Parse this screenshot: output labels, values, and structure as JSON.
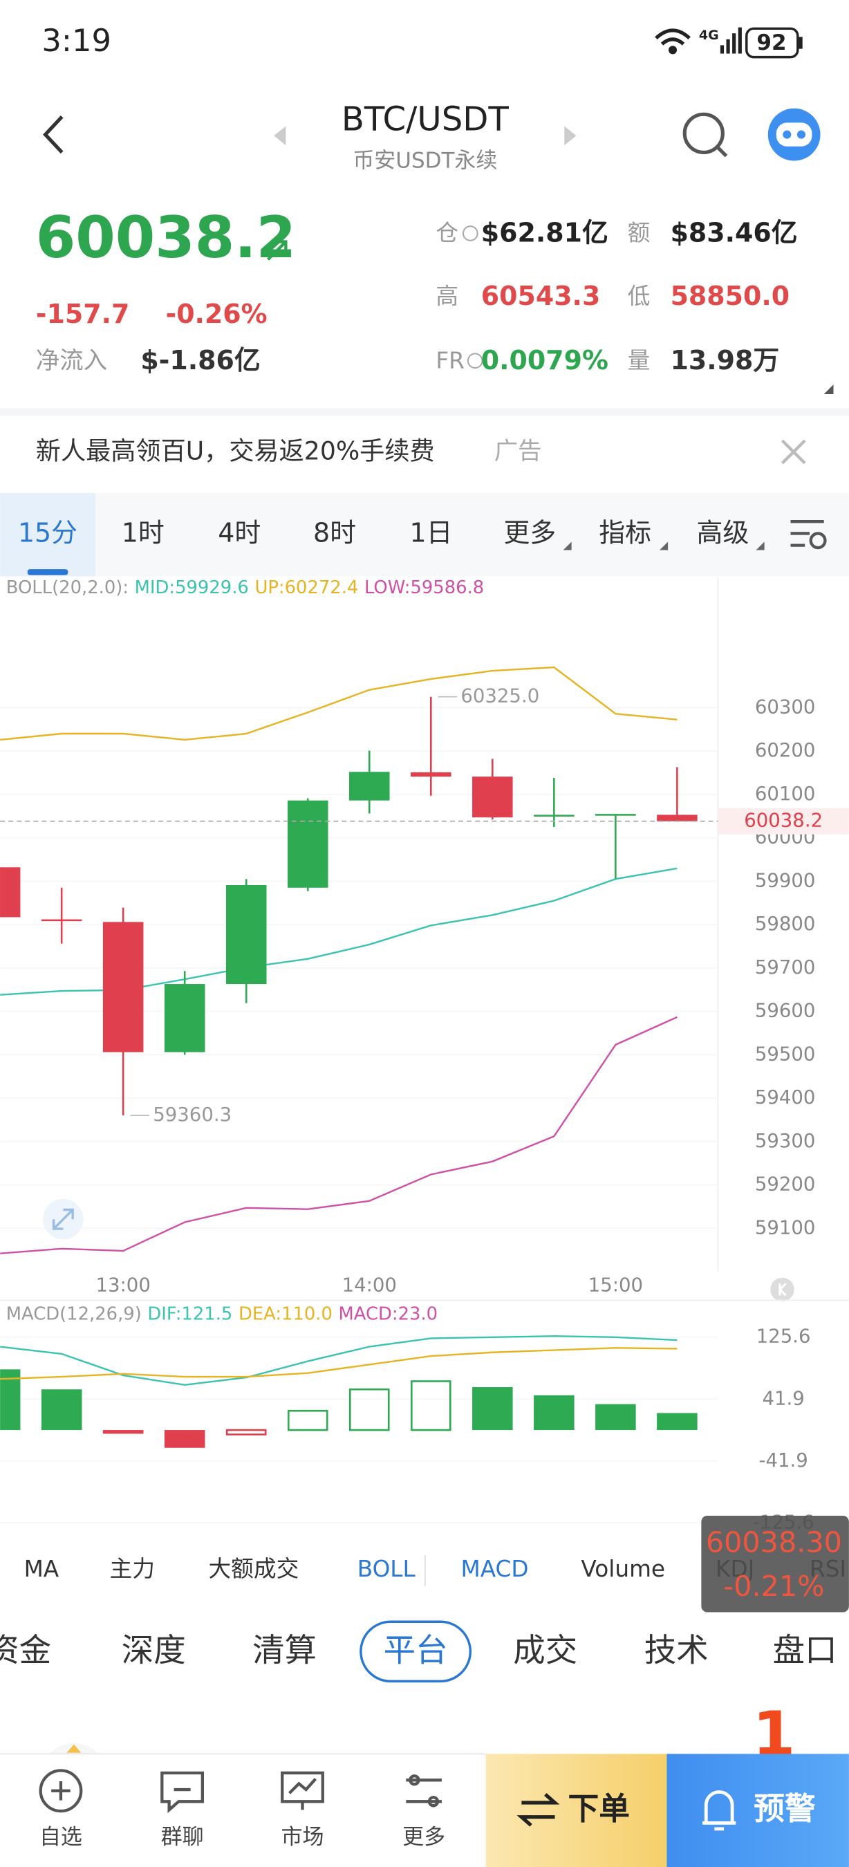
{
  "status_bar": {
    "time": "3:19",
    "network": "4G",
    "battery": "92"
  },
  "header": {
    "title": "BTC/USDT",
    "subtitle": "币安USDT永续"
  },
  "ticker": {
    "price": "60038.2",
    "change": "-157.7",
    "change_pct": "-0.26%",
    "net_inflow_label": "净流入",
    "net_inflow": "$-1.86亿",
    "stats": [
      {
        "label": "仓",
        "value": "$62.81亿"
      },
      {
        "label": "额",
        "value": "$83.46亿"
      },
      {
        "label": "高",
        "value": "60543.3"
      },
      {
        "label": "低",
        "value": "58850.0"
      },
      {
        "label": "FR",
        "value": "0.0079%"
      },
      {
        "label": "量",
        "value": "13.98万"
      }
    ]
  },
  "ad": {
    "text": "新人最高领百U，交易返20%手续费",
    "tag": "广告"
  },
  "timeframes": {
    "items": [
      "15分",
      "1时",
      "4时",
      "8时",
      "1日",
      "更多",
      "指标",
      "高级"
    ],
    "selected": 0
  },
  "kline": {
    "type": "candlestick",
    "legend_title": "BOLL(20,2.0):",
    "categories": [
      null,
      null,
      "13:00",
      null,
      null,
      null,
      "14:00",
      null,
      null,
      null,
      "15:00",
      null
    ],
    "candles": [
      {
        "open": 59932,
        "high": 59932,
        "low": 59817,
        "close": 59817
      },
      {
        "open": 59812,
        "high": 59885,
        "low": 59756,
        "close": 59810
      },
      {
        "open": 59806,
        "high": 59839,
        "low": 59360.3,
        "close": 59506
      },
      {
        "open": 59506,
        "high": 59693,
        "low": 59500,
        "close": 59663
      },
      {
        "open": 59663,
        "high": 59905,
        "low": 59619,
        "close": 59891
      },
      {
        "open": 59885,
        "high": 60091,
        "low": 59877,
        "close": 60086
      },
      {
        "open": 60086,
        "high": 60201,
        "low": 60056,
        "close": 60152
      },
      {
        "open": 60151,
        "high": 60325,
        "low": 60097,
        "close": 60141
      },
      {
        "open": 60141,
        "high": 60182,
        "low": 60042,
        "close": 60047
      },
      {
        "open": 60051,
        "high": 60138,
        "low": 60025,
        "close": 60053
      },
      {
        "open": 60053,
        "high": 60055,
        "low": 59905,
        "close": 60055
      },
      {
        "open": 60053,
        "high": 60163,
        "low": 60038.2,
        "close": 60038.2
      }
    ],
    "series": [
      {
        "label": "MID:59929.6",
        "color": "#3cc3b0",
        "values": [
          59638,
          59647,
          59649,
          59674,
          59701,
          59721,
          59754,
          59798,
          59822,
          59855,
          59905,
          59929.6
        ]
      },
      {
        "label": "UP:60272.4",
        "color": "#e6b422",
        "values": [
          60226,
          60240,
          60240,
          60226,
          60240,
          60289,
          60341,
          60366,
          60385,
          60393,
          60286,
          60272.4
        ]
      },
      {
        "label": "LOW:59586.8",
        "color": "#d050a8",
        "values": [
          59042,
          59053,
          59048,
          59114,
          59147,
          59144,
          59163,
          59224,
          59254,
          59312,
          59523,
          59586.8
        ]
      }
    ],
    "ylim": [
      59000,
      60600
    ],
    "yticks": [
      59100,
      59200,
      59300,
      59400,
      59500,
      59600,
      59700,
      59800,
      59900,
      60000,
      60100,
      60200,
      60300
    ],
    "up_color": "#2eaa53",
    "down_color": "#e0404e",
    "high_label": "60325.0",
    "low_label": "59360.3",
    "last_price_label": "60038.2"
  },
  "macd": {
    "type": "bar",
    "legend_title": "MACD(12,26,9)",
    "series": [
      {
        "label": "DIF:121.5",
        "color": "#3cc3b0",
        "values": [
          112.7,
          103,
          74,
          61,
          71,
          93,
          112.7,
          124,
          125.5,
          127,
          125.5,
          121.5
        ]
      },
      {
        "label": "DEA:110.0",
        "color": "#e6b422",
        "values": [
          69,
          72,
          76,
          72,
          72,
          77,
          88.5,
          100,
          105,
          108,
          111,
          110
        ]
      }
    ],
    "histogram": {
      "label": "MACD:23.0",
      "color": "#d050a8",
      "values": [
        82,
        55,
        -5,
        -24,
        -6,
        26,
        55,
        66,
        58,
        47,
        35,
        23
      ]
    },
    "ylim": [
      -140,
      170
    ],
    "yticks": [
      -125.6,
      -41.9,
      41.9,
      125.6
    ]
  },
  "indicator_tabs": {
    "items": [
      "MA",
      "主力",
      "大额成交",
      "BOLL",
      "MACD",
      "Volume",
      "KDJ",
      "RSI"
    ],
    "active": [
      3,
      4
    ]
  },
  "section_tabs": {
    "items": [
      "资金",
      "深度",
      "清算",
      "平台",
      "成交",
      "技术",
      "盘口"
    ],
    "selected": 3
  },
  "popup": {
    "price": "60038.30",
    "change": "-0.21%"
  },
  "badge": "1",
  "nav": {
    "items": [
      "自选",
      "群聊",
      "市场",
      "更多"
    ],
    "order": "下单",
    "alert": "预警"
  }
}
